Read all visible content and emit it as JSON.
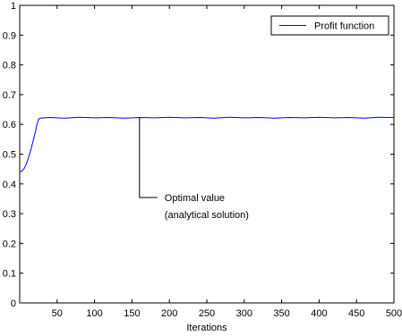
{
  "chart_data": {
    "type": "line",
    "xlabel": "Iterations",
    "ylabel": "",
    "xlim": [
      0,
      500
    ],
    "ylim": [
      0,
      1
    ],
    "x_ticks": [
      50,
      100,
      150,
      200,
      250,
      300,
      350,
      400,
      450,
      500
    ],
    "x_tick_labels": [
      "50",
      "100",
      "150",
      "200",
      "250",
      "300",
      "350",
      "400",
      "450",
      "500"
    ],
    "y_ticks": [
      0,
      0.1,
      0.2,
      0.3,
      0.4,
      0.5,
      0.6,
      0.7,
      0.8,
      0.9,
      1
    ],
    "y_tick_labels": [
      "0",
      "0.1",
      "0.2",
      "0.3",
      "0.4",
      "0.5",
      "0.6",
      "0.7",
      "0.8",
      "0.9",
      "1"
    ],
    "grid": false,
    "legend_position": "top-right",
    "series": [
      {
        "name": "Profit function",
        "color": "#0000ff",
        "points": [
          [
            1,
            0.44
          ],
          [
            3,
            0.443
          ],
          [
            6,
            0.452
          ],
          [
            9,
            0.468
          ],
          [
            12,
            0.49
          ],
          [
            15,
            0.515
          ],
          [
            18,
            0.545
          ],
          [
            21,
            0.575
          ],
          [
            23,
            0.6
          ],
          [
            25,
            0.616
          ],
          [
            27,
            0.621
          ],
          [
            40,
            0.623
          ],
          [
            60,
            0.621
          ],
          [
            80,
            0.624
          ],
          [
            100,
            0.622
          ],
          [
            120,
            0.623
          ],
          [
            140,
            0.621
          ],
          [
            160,
            0.623
          ],
          [
            180,
            0.622
          ],
          [
            200,
            0.624
          ],
          [
            220,
            0.622
          ],
          [
            240,
            0.623
          ],
          [
            260,
            0.621
          ],
          [
            280,
            0.624
          ],
          [
            300,
            0.622
          ],
          [
            320,
            0.623
          ],
          [
            340,
            0.621
          ],
          [
            360,
            0.623
          ],
          [
            380,
            0.622
          ],
          [
            400,
            0.624
          ],
          [
            420,
            0.622
          ],
          [
            440,
            0.623
          ],
          [
            460,
            0.621
          ],
          [
            480,
            0.624
          ],
          [
            500,
            0.623
          ]
        ]
      }
    ],
    "annotation": {
      "lines": [
        "Optimal value",
        "(analytical solution)"
      ],
      "x": 160,
      "y": 0.623
    }
  }
}
